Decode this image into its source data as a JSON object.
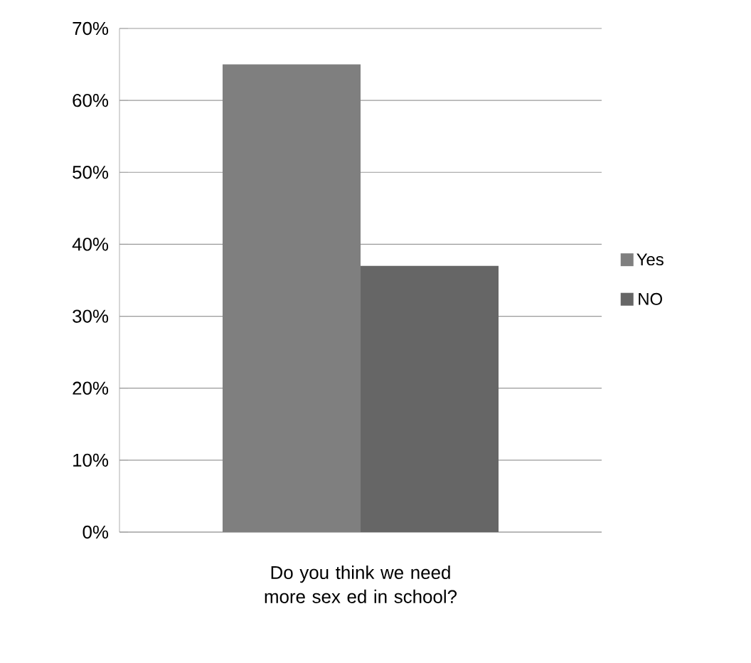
{
  "chart_data": {
    "type": "bar",
    "categories": [
      "Do you think we need more sex ed in school?"
    ],
    "series": [
      {
        "name": "Yes",
        "color": "#7f7f7f",
        "values": [
          65
        ]
      },
      {
        "name": "NO",
        "color": "#666666",
        "values": [
          37
        ]
      }
    ],
    "ylim": [
      0,
      70
    ],
    "yticks": [
      {
        "value": 0,
        "label": "0%"
      },
      {
        "value": 10,
        "label": "10%"
      },
      {
        "value": 20,
        "label": "20%"
      },
      {
        "value": 30,
        "label": "30%"
      },
      {
        "value": 40,
        "label": "40%"
      },
      {
        "value": 50,
        "label": "50%"
      },
      {
        "value": 60,
        "label": "60%"
      },
      {
        "value": 70,
        "label": "70%"
      }
    ],
    "grid": "y",
    "legend": "right"
  }
}
